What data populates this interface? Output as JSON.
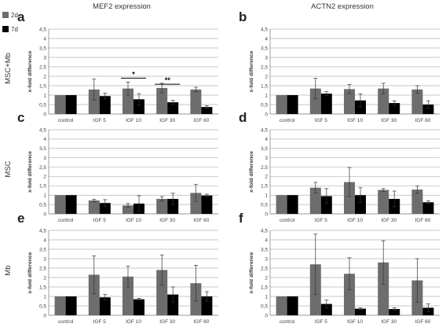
{
  "legend": [
    {
      "label": "2d",
      "color": "#6d6d6d"
    },
    {
      "label": "7d",
      "color": "#000000"
    }
  ],
  "column_titles": [
    "MEF2 expression",
    "ACTN2 expression"
  ],
  "row_labels": [
    "MSC+Mb",
    "MSC",
    "Mb"
  ],
  "colors": {
    "s2d": "#6d6d6d",
    "s7d": "#000000",
    "grid": "#b5b5b5",
    "axis": "#777777"
  },
  "chart_data": [
    {
      "type": "bar",
      "panel_letter": "a",
      "ylabel": "x-fold difference",
      "ylim": [
        0,
        4.5
      ],
      "yticks": [
        "0",
        "0,5",
        "1",
        "1,5",
        "2",
        "2,5",
        "3",
        "3,5",
        "4",
        "4,5"
      ],
      "categories": [
        "control",
        "IGF 5",
        "IGF 10",
        "IGF 30",
        "IGF 60"
      ],
      "series": [
        {
          "name": "2d",
          "values": [
            1,
            1.3,
            1.35,
            1.38,
            1.3
          ],
          "errors": [
            0,
            0.55,
            0.35,
            0.25,
            0.12
          ]
        },
        {
          "name": "7d",
          "values": [
            1,
            0.95,
            0.78,
            0.62,
            0.37
          ],
          "errors": [
            0,
            0.15,
            0.3,
            0.1,
            0.07
          ]
        }
      ],
      "significance": [
        {
          "label": "*",
          "from": 2,
          "to": 2,
          "y": 1.9
        },
        {
          "label": "**",
          "from": 3,
          "to": 3,
          "y": 1.58
        }
      ]
    },
    {
      "type": "bar",
      "panel_letter": "b",
      "ylabel": "x-fold difference",
      "ylim": [
        0,
        4.5
      ],
      "yticks": [
        "0",
        "0,5",
        "1",
        "1,5",
        "2",
        "2,5",
        "3",
        "3,5",
        "4",
        "4,5"
      ],
      "categories": [
        "control",
        "IGF 5",
        "IGF 10",
        "IGF 30",
        "IGF 60"
      ],
      "series": [
        {
          "name": "2d",
          "values": [
            1,
            1.35,
            1.32,
            1.35,
            1.3
          ],
          "errors": [
            0,
            0.55,
            0.25,
            0.28,
            0.2
          ]
        },
        {
          "name": "7d",
          "values": [
            1,
            1.08,
            0.72,
            0.58,
            0.5
          ],
          "errors": [
            0,
            0.1,
            0.35,
            0.12,
            0.2
          ]
        }
      ]
    },
    {
      "type": "bar",
      "panel_letter": "c",
      "ylabel": "x-fold difference",
      "ylim": [
        0,
        4.5
      ],
      "yticks": [
        "0",
        "0,5",
        "1",
        "1,5",
        "2",
        "2,5",
        "3",
        "3,5",
        "4",
        "4,5"
      ],
      "categories": [
        "control",
        "IGF 5",
        "IGF 10",
        "IGF 30",
        "IGF 60"
      ],
      "series": [
        {
          "name": "2d",
          "values": [
            1,
            0.72,
            0.45,
            0.8,
            1.12
          ],
          "errors": [
            0,
            0.06,
            0.1,
            0.12,
            0.45
          ]
        },
        {
          "name": "7d",
          "values": [
            1,
            0.58,
            0.55,
            0.8,
            0.98
          ],
          "errors": [
            0,
            0.18,
            0.42,
            0.3,
            0.07
          ]
        }
      ]
    },
    {
      "type": "bar",
      "panel_letter": "d",
      "ylabel": "x-fold difference",
      "ylim": [
        0,
        4.5
      ],
      "yticks": [
        "0",
        "0,5",
        "1",
        "1,5",
        "2",
        "2,5",
        "3",
        "3,5",
        "4",
        "4,5"
      ],
      "categories": [
        "control",
        "IGF 5",
        "IGF 10",
        "IGF 30",
        "IGF 60"
      ],
      "series": [
        {
          "name": "2d",
          "values": [
            1,
            1.4,
            1.7,
            1.28,
            1.3
          ],
          "errors": [
            0,
            0.28,
            0.78,
            0.07,
            0.2
          ]
        },
        {
          "name": "7d",
          "values": [
            1,
            0.95,
            1.0,
            0.8,
            0.62
          ],
          "errors": [
            0,
            0.4,
            0.4,
            0.42,
            0.07
          ]
        }
      ]
    },
    {
      "type": "bar",
      "panel_letter": "e",
      "ylabel": "x-fold difference",
      "ylim": [
        0,
        4.5
      ],
      "yticks": [
        "0",
        "0,5",
        "1",
        "1,5",
        "2",
        "2,5",
        "3",
        "3,5",
        "4",
        "4,5"
      ],
      "categories": [
        "control",
        "IGF 5",
        "IGF 10",
        "IGF 30",
        "IGF 60"
      ],
      "series": [
        {
          "name": "2d",
          "values": [
            1,
            2.15,
            2.05,
            2.4,
            1.7
          ],
          "errors": [
            0,
            1.0,
            0.55,
            0.8,
            0.95
          ]
        },
        {
          "name": "7d",
          "values": [
            1,
            0.95,
            0.85,
            1.1,
            1.0
          ],
          "errors": [
            0,
            0.15,
            0.05,
            0.4,
            0.25
          ]
        }
      ]
    },
    {
      "type": "bar",
      "panel_letter": "f",
      "ylabel": "x-fold difference",
      "ylim": [
        0,
        4.5
      ],
      "yticks": [
        "0",
        "0,5",
        "1",
        "1,5",
        "2",
        "2,5",
        "3",
        "3,5",
        "4",
        "4,5"
      ],
      "categories": [
        "control",
        "IGF 5",
        "IGF 10",
        "IGF 30",
        "IGF 60"
      ],
      "series": [
        {
          "name": "2d",
          "values": [
            1,
            2.7,
            2.2,
            2.8,
            1.85
          ],
          "errors": [
            0,
            1.6,
            0.85,
            1.15,
            1.15
          ]
        },
        {
          "name": "7d",
          "values": [
            1,
            0.6,
            0.35,
            0.33,
            0.4
          ],
          "errors": [
            0,
            0.2,
            0.05,
            0.07,
            0.2
          ]
        }
      ]
    }
  ]
}
